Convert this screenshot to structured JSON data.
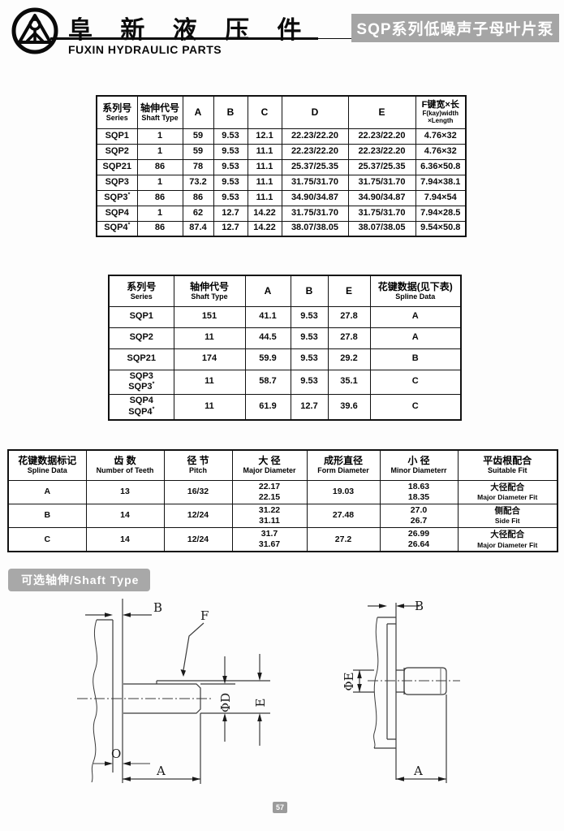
{
  "header": {
    "title_zh": "阜 新 液 压 件",
    "title_en": "FUXIN HYDRAULIC PARTS",
    "banner": "SQP系列低噪声子母叶片泵"
  },
  "colors": {
    "banner_gray": "#a5a5a5",
    "section_banner_gray": "#a8a8a8",
    "page_number_gray": "#9b9b9b",
    "table_border": "#111111"
  },
  "shaft_dim_table": {
    "headers": [
      {
        "zh": "系列号",
        "en": "Series"
      },
      {
        "zh": "轴伸代号",
        "en": "Shaft Type"
      },
      {
        "zh": "A",
        "en": ""
      },
      {
        "zh": "B",
        "en": ""
      },
      {
        "zh": "C",
        "en": ""
      },
      {
        "zh": "D",
        "en": ""
      },
      {
        "zh": "E",
        "en": ""
      },
      {
        "zh": "F键宽×长",
        "en": "F(kay)width\n×Length"
      }
    ],
    "rows": [
      [
        "SQP1",
        "1",
        "59",
        "9.53",
        "12.1",
        "22.23/22.20",
        "22.23/22.20",
        "4.76×32"
      ],
      [
        "SQP2",
        "1",
        "59",
        "9.53",
        "11.1",
        "22.23/22.20",
        "22.23/22.20",
        "4.76×32"
      ],
      [
        "SQP21",
        "86",
        "78",
        "9.53",
        "11.1",
        "25.37/25.35",
        "25.37/25.35",
        "6.36×50.8"
      ],
      [
        "SQP3",
        "1",
        "73.2",
        "9.53",
        "11.1",
        "31.75/31.70",
        "31.75/31.70",
        "7.94×38.1"
      ],
      [
        "SQP3*",
        "86",
        "86",
        "9.53",
        "11.1",
        "34.90/34.87",
        "34.90/34.87",
        "7.94×54"
      ],
      [
        "SQP4",
        "1",
        "62",
        "12.7",
        "14.22",
        "31.75/31.70",
        "31.75/31.70",
        "7.94×28.5"
      ],
      [
        "SQP4*",
        "86",
        "87.4",
        "12.7",
        "14.22",
        "38.07/38.05",
        "38.07/38.05",
        "9.54×50.8"
      ]
    ]
  },
  "spline_shaft_table": {
    "headers": [
      {
        "zh": "系列号",
        "en": "Series"
      },
      {
        "zh": "轴伸代号",
        "en": "Shaft Type"
      },
      {
        "zh": "A",
        "en": ""
      },
      {
        "zh": "B",
        "en": ""
      },
      {
        "zh": "E",
        "en": ""
      },
      {
        "zh": "花键数据(见下表)",
        "en": "Spline Data"
      }
    ],
    "rows": [
      [
        "SQP1",
        "151",
        "41.1",
        "9.53",
        "27.8",
        "A"
      ],
      [
        "SQP2",
        "11",
        "44.5",
        "9.53",
        "27.8",
        "A"
      ],
      [
        "SQP21",
        "174",
        "59.9",
        "9.53",
        "29.2",
        "B"
      ],
      [
        "SQP3\nSQP3*",
        "11",
        "58.7",
        "9.53",
        "35.1",
        "C"
      ],
      [
        "SQP4\nSQP4*",
        "11",
        "61.9",
        "12.7",
        "39.6",
        "C"
      ]
    ]
  },
  "spline_data_table": {
    "headers": [
      {
        "zh": "花键数据标记",
        "en": "Spline Data"
      },
      {
        "zh": "齿 数",
        "en": "Number of Teeth"
      },
      {
        "zh": "径 节",
        "en": "Pitch"
      },
      {
        "zh": "大 径",
        "en": "Major Diameter"
      },
      {
        "zh": "成形直径",
        "en": "Form Diameter"
      },
      {
        "zh": "小 径",
        "en": "Minor Diameterr"
      },
      {
        "zh": "平齿根配合",
        "en": "Suitable Fit"
      }
    ],
    "rows": [
      [
        "A",
        "13",
        "16/32",
        "22.17\n22.15",
        "19.03",
        "18.63\n18.35",
        "大径配合\nMajor Diameter Fit"
      ],
      [
        "B",
        "14",
        "12/24",
        "31.22\n31.11",
        "27.48",
        "27.0\n26.7",
        "侧配合\nSide Fit"
      ],
      [
        "C",
        "14",
        "12/24",
        "31.7\n31.67",
        "27.2",
        "26.99\n26.64",
        "大径配合\nMajor Diameter Fit"
      ]
    ]
  },
  "shaft_type_banner": "可选轴伸/Shaft Type",
  "drawing_left": {
    "label_b": "B",
    "label_f": "F",
    "label_d": "ΦD",
    "label_e": "E",
    "label_o": "O",
    "label_a": "A"
  },
  "drawing_right": {
    "label_b": "B",
    "label_e": "ΦE",
    "label_a": "A"
  },
  "page_number": "57"
}
